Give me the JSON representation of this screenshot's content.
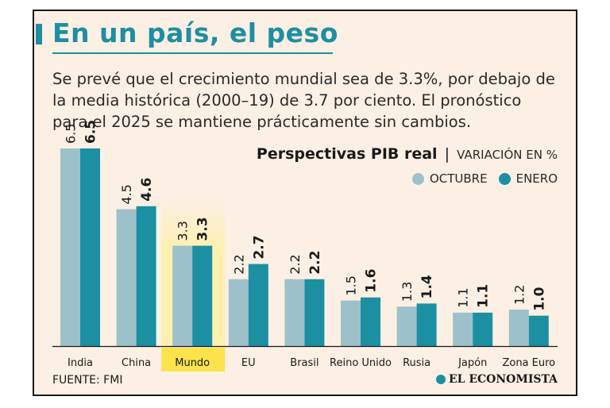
{
  "header": {
    "title": "En un país, el peso",
    "subtitle": "Se prevé que el crecimiento mundial sea de 3.3%, por debajo de la media histórica (2000–19) de 3.7 por ciento. El pronóstico para el 2025 se mantiene prácticamente sin cambios."
  },
  "chart_data": {
    "type": "bar",
    "title": "Perspectivas PIB real",
    "unit": "VARIACIÓN EN %",
    "categories": [
      "India",
      "China",
      "Mundo",
      "EU",
      "Brasil",
      "Reino Unido",
      "Rusia",
      "Japón",
      "Zona Euro"
    ],
    "highlight_category": "Mundo",
    "series": [
      {
        "name": "OCTUBRE",
        "color": "#9dc1cb",
        "values": [
          6.5,
          4.5,
          3.3,
          2.2,
          2.2,
          1.5,
          1.3,
          1.1,
          1.2
        ]
      },
      {
        "name": "ENERO",
        "color": "#1c8fa3",
        "values": [
          6.5,
          4.6,
          3.3,
          2.7,
          2.2,
          1.6,
          1.4,
          1.1,
          1.0
        ]
      }
    ],
    "ylim": [
      0,
      6.5
    ],
    "legend_position": "top-right",
    "colors": {
      "highlight": "#fce34b",
      "highlight_glow": "#fdf0b0",
      "axis": "#1a1a1a"
    }
  },
  "footer": {
    "source": "FUENTE: FMI",
    "brand": "EL ECONOMISTA"
  }
}
